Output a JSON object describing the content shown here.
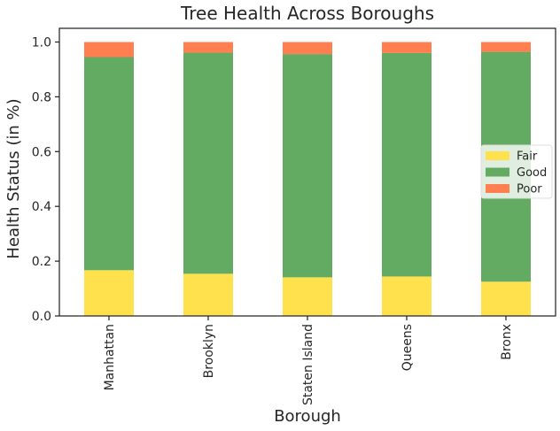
{
  "chart_data": {
    "type": "bar",
    "stacked": true,
    "title": "Tree Health Across Boroughs",
    "xlabel": "Borough",
    "ylabel": "Health Status (in %)",
    "ylim": [
      0,
      1.05
    ],
    "yticks": [
      "0.0",
      "0.2",
      "0.4",
      "0.6",
      "0.8",
      "1.0"
    ],
    "categories": [
      "Manhattan",
      "Brooklyn",
      "Staten Island",
      "Queens",
      "Bronx"
    ],
    "series": [
      {
        "name": "Fair",
        "color": "#ffe14d",
        "values": [
          0.167,
          0.154,
          0.141,
          0.144,
          0.125
        ]
      },
      {
        "name": "Good",
        "color": "#63aa63",
        "values": [
          0.778,
          0.807,
          0.815,
          0.816,
          0.839
        ]
      },
      {
        "name": "Poor",
        "color": "#ff7f50",
        "values": [
          0.055,
          0.039,
          0.044,
          0.04,
          0.036
        ]
      }
    ],
    "legend": "center-right",
    "grid": false
  }
}
